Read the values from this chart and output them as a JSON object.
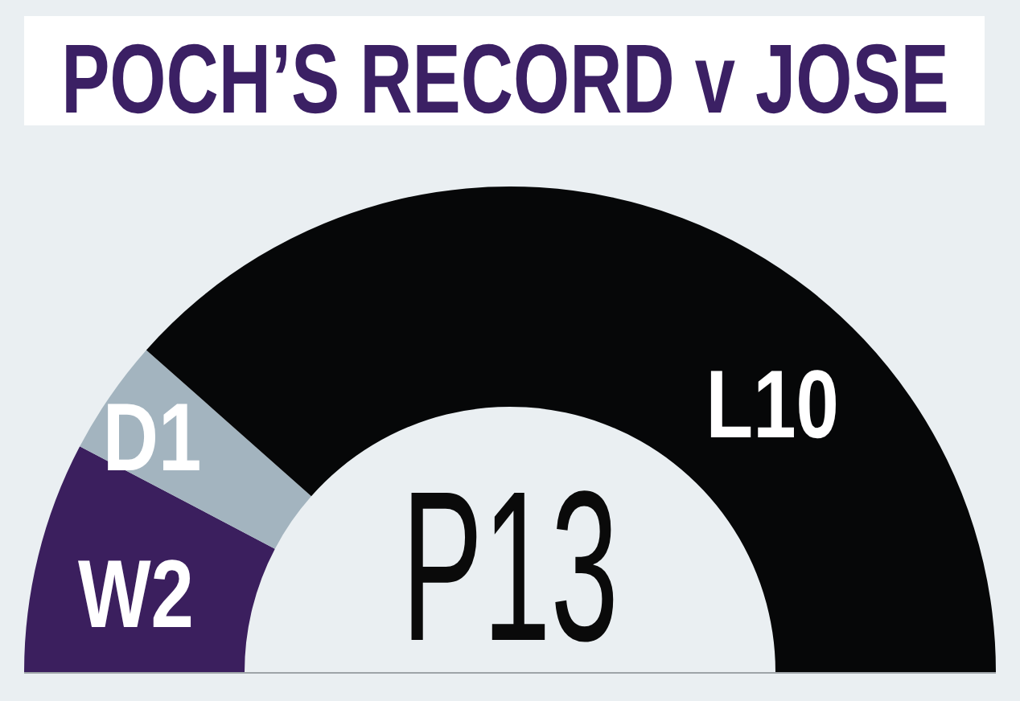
{
  "chart_data": {
    "type": "donut",
    "title": "POCH’S RECORD v JOSE",
    "categories": [
      "W",
      "D",
      "L"
    ],
    "values": [
      2,
      1,
      10
    ],
    "colors": [
      "#3b1f5e",
      "#a3b4bf",
      "#060708"
    ],
    "data_labels": true,
    "annotations": [
      "P13"
    ]
  }
}
